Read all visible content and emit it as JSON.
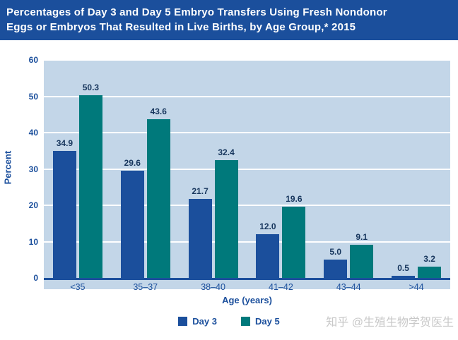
{
  "title": {
    "lines": [
      "Percentages of Day 3 and Day 5 Embryo Transfers Using Fresh Nondonor",
      "Eggs or Embryos That Resulted in Live Births, by Age Group,* 2015"
    ]
  },
  "chart_data": {
    "type": "bar",
    "categories": [
      "<35",
      "35–37",
      "38–40",
      "41–42",
      "43–44",
      ">44"
    ],
    "series": [
      {
        "name": "Day 3",
        "color": "#1b4f9c",
        "values": [
          34.9,
          29.6,
          21.7,
          12.0,
          5.0,
          0.5
        ]
      },
      {
        "name": "Day 5",
        "color": "#00797b",
        "values": [
          50.3,
          43.6,
          32.4,
          19.6,
          9.1,
          3.2
        ]
      }
    ],
    "xlabel": "Age (years)",
    "ylabel": "Percent",
    "ylim": [
      0,
      60
    ],
    "yticks": [
      0,
      10,
      20,
      30,
      40,
      50,
      60
    ],
    "grid": true,
    "legend_position": "bottom"
  },
  "watermark": "知乎 @生殖生物学贺医生",
  "colors": {
    "banner_bg": "#1b4f9c",
    "banner_text": "#ffffff",
    "plot_bg": "#c3d6e8",
    "gridline": "#ffffff",
    "axis_line": "#1b4f9c",
    "axis_text": "#1b4f9c",
    "value_label": "#17365d",
    "watermark_text": "#c8c8c8"
  }
}
